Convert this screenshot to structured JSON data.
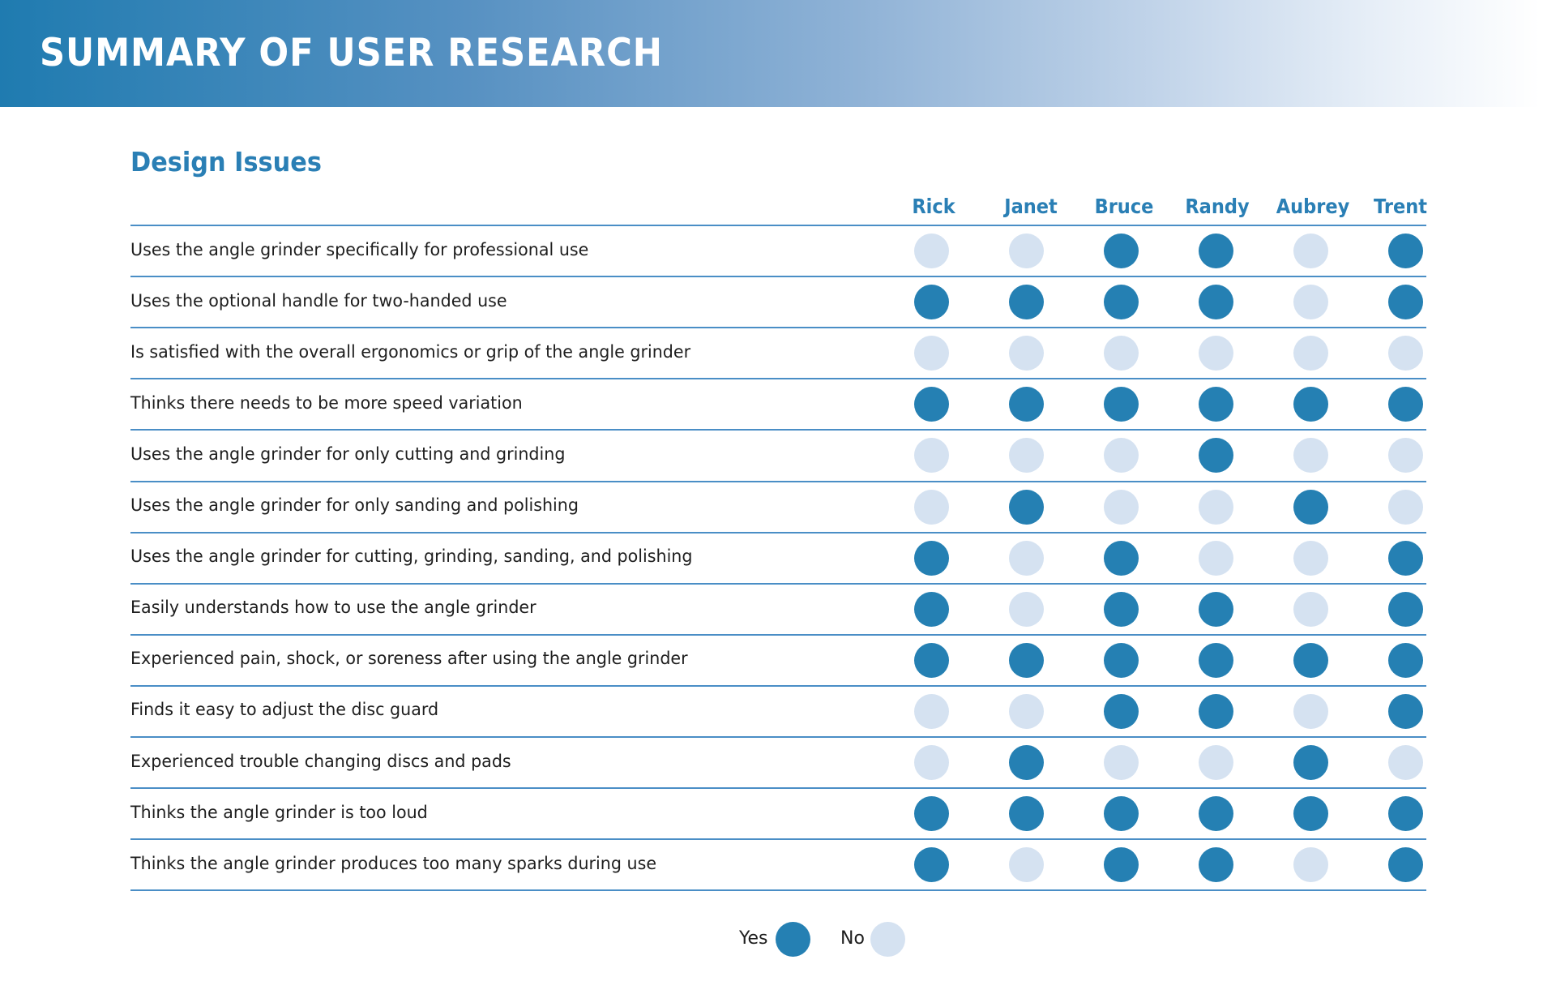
{
  "header": {
    "title": "SUMMARY OF USER RESEARCH"
  },
  "section": {
    "title": "Design Issues"
  },
  "colors": {
    "yes": "#2580b3",
    "no": "#d5e2f1",
    "rule": "#4a8ec6",
    "accent": "#2a7fb5"
  },
  "legend": {
    "yes_label": "Yes",
    "no_label": "No"
  },
  "chart_data": {
    "type": "table",
    "title": "Design Issues",
    "columns": [
      "Rick",
      "Janet",
      "Bruce",
      "Randy",
      "Aubrey",
      "Trent"
    ],
    "legend": {
      "1": "Yes",
      "0": "No"
    },
    "rows": [
      {
        "label": "Uses the angle grinder specifically for professional use",
        "values": [
          0,
          0,
          1,
          1,
          0,
          1
        ]
      },
      {
        "label": "Uses the optional handle for two-handed use",
        "values": [
          1,
          1,
          1,
          1,
          0,
          1
        ]
      },
      {
        "label": "Is satisfied with the overall ergonomics or grip of the angle grinder",
        "values": [
          0,
          0,
          0,
          0,
          0,
          0
        ]
      },
      {
        "label": "Thinks there needs to be more speed variation",
        "values": [
          1,
          1,
          1,
          1,
          1,
          1
        ]
      },
      {
        "label": "Uses the angle grinder for only cutting and grinding",
        "values": [
          0,
          0,
          0,
          1,
          0,
          0
        ]
      },
      {
        "label": "Uses the angle grinder for only sanding and polishing",
        "values": [
          0,
          1,
          0,
          0,
          1,
          0
        ]
      },
      {
        "label": "Uses the angle grinder for cutting, grinding, sanding, and polishing",
        "values": [
          1,
          0,
          1,
          0,
          0,
          1
        ]
      },
      {
        "label": "Easily understands how to use the angle grinder",
        "values": [
          1,
          0,
          1,
          1,
          0,
          1
        ]
      },
      {
        "label": "Experienced pain, shock, or soreness after using the angle grinder",
        "values": [
          1,
          1,
          1,
          1,
          1,
          1
        ]
      },
      {
        "label": "Finds it easy to adjust the disc guard",
        "values": [
          0,
          0,
          1,
          1,
          0,
          1
        ]
      },
      {
        "label": "Experienced trouble changing discs and pads",
        "values": [
          0,
          1,
          0,
          0,
          1,
          0
        ]
      },
      {
        "label": "Thinks the angle grinder is too loud",
        "values": [
          1,
          1,
          1,
          1,
          1,
          1
        ]
      },
      {
        "label": "Thinks the angle grinder produces too many sparks during use",
        "values": [
          1,
          0,
          1,
          1,
          0,
          1
        ]
      }
    ]
  }
}
